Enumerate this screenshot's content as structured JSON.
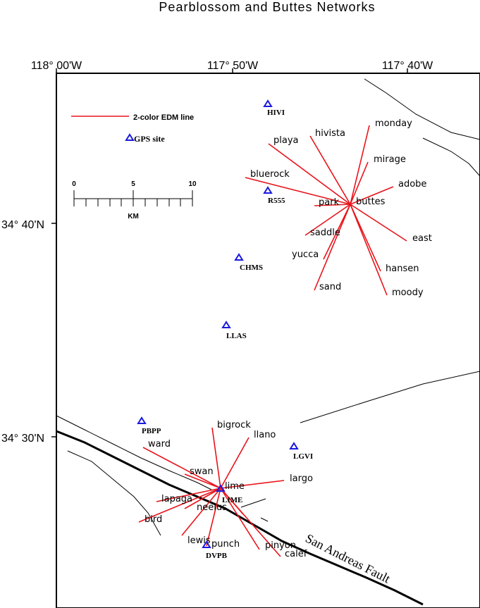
{
  "title": "Pearblossom and Buttes Networks",
  "axes": {
    "longitude_labels": [
      "118° 00'W",
      "117° 50'W",
      "117° 40'W"
    ],
    "latitude_labels": [
      "34° 40'N",
      "34° 30'N"
    ]
  },
  "legend": {
    "edm_label": "2-color EDM line",
    "gps_label": "GPS site",
    "edm_color": "#e8141b",
    "gps_color": "#1a1adf"
  },
  "scale_bar": {
    "tick_labels": [
      "0",
      "5",
      "10"
    ],
    "unit": "KM"
  },
  "gps_sites": [
    "HIVI",
    "R555",
    "CHMS",
    "LLAS",
    "PBPP",
    "LGVI",
    "LIME",
    "DVPB"
  ],
  "buttes_network": {
    "center": "buttes",
    "sites": [
      "monday",
      "hivista",
      "playa",
      "mirage",
      "adobe",
      "bluerock",
      "park",
      "saddle",
      "east",
      "yucca",
      "hansen",
      "sand",
      "moody"
    ]
  },
  "pearblossom_network": {
    "center": "lime",
    "sites": [
      "bigrock",
      "llano",
      "ward",
      "swan",
      "largo",
      "lapaga",
      "neelus",
      "bird",
      "lewis",
      "punch",
      "pinyon",
      "calef"
    ]
  },
  "fault_label": "San Andreas Fault"
}
